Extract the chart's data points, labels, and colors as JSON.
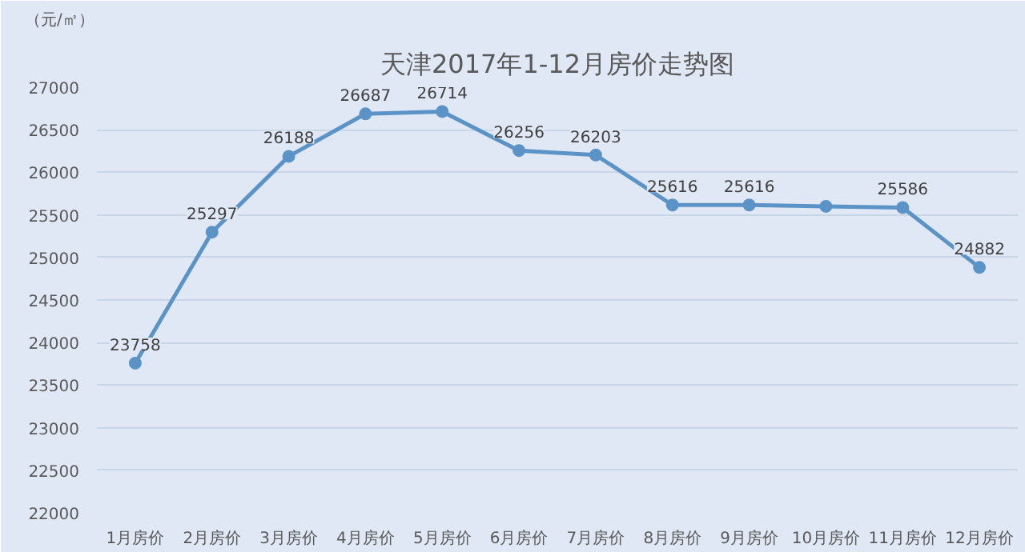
{
  "chart_data": {
    "type": "line",
    "title": "天津2017年1-12月房价走势图",
    "ylabel": "（元/㎡）",
    "categories": [
      "1月房价",
      "2月房价",
      "3月房价",
      "4月房价",
      "5月房价",
      "6月房价",
      "7月房价",
      "8月房价",
      "9月房价",
      "10月房价",
      "11月房价",
      "12月房价"
    ],
    "series": [
      {
        "color": "#5b93c7",
        "values": [
          23758,
          25297,
          26188,
          26687,
          26714,
          26256,
          26203,
          25616,
          25616,
          25600,
          25586,
          24882
        ],
        "value_labels": [
          "23758",
          "25297",
          "26188",
          "26687",
          "26714",
          "26256",
          "26203",
          "25616",
          "25616",
          null,
          "25586",
          "24882"
        ]
      }
    ],
    "ylim": [
      22000,
      27000
    ],
    "yticks": [
      22000,
      22500,
      23000,
      23500,
      24000,
      24500,
      25000,
      25500,
      26000,
      26500,
      27000
    ],
    "grid": "y",
    "marker": "circle",
    "line_style": "solid"
  }
}
